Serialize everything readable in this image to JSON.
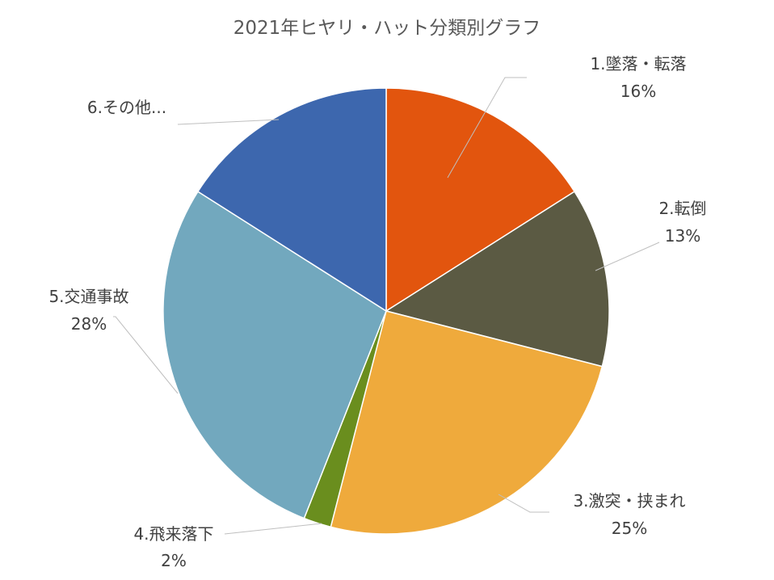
{
  "chart_data": {
    "type": "pie",
    "title": "2021年ヒヤリ・ハット分類別グラフ",
    "start_angle_deg": 0,
    "direction": "clockwise",
    "slices": [
      {
        "label": "1.墜落・転落",
        "value": 16,
        "percent_label": "16%",
        "color": "#E2550E"
      },
      {
        "label": "2.転倒",
        "value": 13,
        "percent_label": "13%",
        "color": "#5B5A43"
      },
      {
        "label": "3.激突・挟まれ",
        "value": 25,
        "percent_label": "25%",
        "color": "#EFAA3C"
      },
      {
        "label": "4.飛来落下",
        "value": 2,
        "percent_label": "2%",
        "color": "#6A8E1E"
      },
      {
        "label": "5.交通事故",
        "value": 28,
        "percent_label": "28%",
        "color": "#72A8BE"
      },
      {
        "label": "6.その他...",
        "value": 16,
        "percent_label": "",
        "color": "#3D67AE"
      }
    ]
  }
}
